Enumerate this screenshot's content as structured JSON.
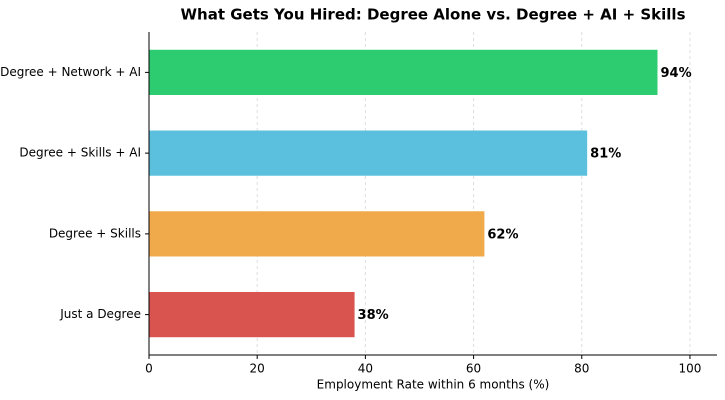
{
  "chart_data": {
    "type": "barh",
    "title": "What Gets You Hired: Degree Alone vs. Degree + AI + Skills",
    "x_label": "Employment Rate within 6 months (%)",
    "categories": [
      "Degree + Network + AI",
      "Degree + Skills + AI",
      "Degree + Skills",
      "Just a Degree"
    ],
    "values": [
      94,
      81,
      62,
      38
    ],
    "value_labels": [
      "94%",
      "81%",
      "62%",
      "38%"
    ],
    "colors": [
      "#2ecc71",
      "#5bc0de",
      "#f0a94b",
      "#d9534f"
    ],
    "xlim": [
      0,
      105
    ],
    "xticks": [
      0,
      20,
      40,
      60,
      80,
      100
    ],
    "grid": true
  }
}
